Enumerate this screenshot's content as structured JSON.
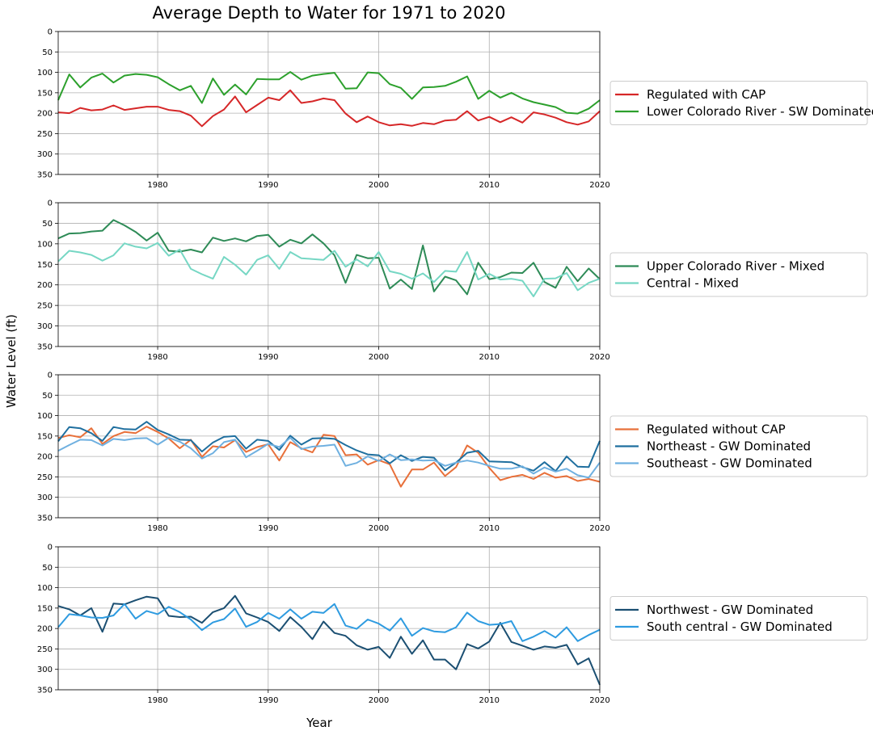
{
  "figure": {
    "title": "Average Depth to Water for 1971 to 2020",
    "ylabel": "Water Level (ft)",
    "xlabel": "Year"
  },
  "chart_data": [
    {
      "type": "line",
      "xlim": [
        1971,
        2020
      ],
      "ylim": [
        0,
        350
      ],
      "y_inverted": true,
      "x_ticks": [
        1980,
        1990,
        2000,
        2010,
        2020
      ],
      "y_ticks": [
        0,
        50,
        100,
        150,
        200,
        250,
        300,
        350
      ],
      "grid": true,
      "legend_position": "right",
      "x": [
        1971,
        1972,
        1973,
        1974,
        1975,
        1976,
        1977,
        1978,
        1979,
        1980,
        1981,
        1982,
        1983,
        1984,
        1985,
        1986,
        1987,
        1988,
        1989,
        1990,
        1991,
        1992,
        1993,
        1994,
        1995,
        1996,
        1997,
        1998,
        1999,
        2000,
        2001,
        2002,
        2003,
        2004,
        2005,
        2006,
        2007,
        2008,
        2009,
        2010,
        2011,
        2012,
        2013,
        2014,
        2015,
        2016,
        2017,
        2018,
        2019,
        2020
      ],
      "series": [
        {
          "name": "Regulated with CAP",
          "color": "#d62728",
          "values": [
            198,
            200,
            187,
            193,
            191,
            181,
            192,
            188,
            184,
            184,
            192,
            195,
            206,
            232,
            207,
            191,
            159,
            198,
            180,
            162,
            168,
            144,
            175,
            171,
            164,
            168,
            201,
            222,
            208,
            222,
            230,
            227,
            231,
            224,
            227,
            218,
            216,
            195,
            218,
            209,
            222,
            210,
            223,
            198,
            203,
            211,
            222,
            228,
            220,
            195
          ]
        },
        {
          "name": "Lower Colorado River - SW Dominated",
          "color": "#2ca02c",
          "values": [
            168,
            105,
            137,
            113,
            103,
            125,
            108,
            104,
            106,
            112,
            129,
            144,
            133,
            175,
            115,
            155,
            130,
            154,
            116,
            117,
            117,
            99,
            118,
            108,
            104,
            101,
            140,
            139,
            100,
            102,
            129,
            138,
            165,
            137,
            136,
            133,
            123,
            110,
            165,
            145,
            162,
            150,
            164,
            173,
            179,
            185,
            199,
            201,
            189,
            168
          ]
        }
      ]
    },
    {
      "type": "line",
      "xlim": [
        1971,
        2020
      ],
      "ylim": [
        0,
        350
      ],
      "y_inverted": true,
      "x_ticks": [
        1980,
        1990,
        2000,
        2010,
        2020
      ],
      "y_ticks": [
        0,
        50,
        100,
        150,
        200,
        250,
        300,
        350
      ],
      "grid": true,
      "legend_position": "right",
      "x": [
        1971,
        1972,
        1973,
        1974,
        1975,
        1976,
        1977,
        1978,
        1979,
        1980,
        1981,
        1982,
        1983,
        1984,
        1985,
        1986,
        1987,
        1988,
        1989,
        1990,
        1991,
        1992,
        1993,
        1994,
        1995,
        1996,
        1997,
        1998,
        1999,
        2000,
        2001,
        2002,
        2003,
        2004,
        2005,
        2006,
        2007,
        2008,
        2009,
        2010,
        2011,
        2012,
        2013,
        2014,
        2015,
        2016,
        2017,
        2018,
        2019,
        2020
      ],
      "series": [
        {
          "name": "Upper Colorado River - Mixed",
          "color": "#2e8b57",
          "values": [
            87,
            75,
            74,
            70,
            68,
            42,
            55,
            71,
            92,
            73,
            117,
            119,
            114,
            121,
            85,
            93,
            87,
            94,
            81,
            78,
            107,
            90,
            99,
            77,
            99,
            128,
            195,
            127,
            135,
            134,
            209,
            187,
            210,
            104,
            216,
            180,
            189,
            223,
            146,
            186,
            181,
            170,
            171,
            146,
            193,
            207,
            156,
            191,
            160,
            186
          ]
        },
        {
          "name": "Central - Mixed",
          "color": "#76d7c4",
          "values": [
            143,
            117,
            121,
            127,
            141,
            128,
            99,
            107,
            111,
            98,
            129,
            114,
            161,
            174,
            185,
            132,
            151,
            175,
            139,
            128,
            161,
            120,
            135,
            137,
            139,
            117,
            156,
            138,
            155,
            120,
            167,
            173,
            185,
            172,
            193,
            166,
            168,
            120,
            187,
            173,
            187,
            185,
            190,
            228,
            185,
            184,
            171,
            213,
            195,
            185
          ]
        }
      ]
    },
    {
      "type": "line",
      "xlim": [
        1971,
        2020
      ],
      "ylim": [
        0,
        350
      ],
      "y_inverted": true,
      "x_ticks": [
        1980,
        1990,
        2000,
        2010,
        2020
      ],
      "y_ticks": [
        0,
        50,
        100,
        150,
        200,
        250,
        300,
        350
      ],
      "grid": true,
      "legend_position": "right",
      "x": [
        1971,
        1972,
        1973,
        1974,
        1975,
        1976,
        1977,
        1978,
        1979,
        1980,
        1981,
        1982,
        1983,
        1984,
        1985,
        1986,
        1987,
        1988,
        1989,
        1990,
        1991,
        1992,
        1993,
        1994,
        1995,
        1996,
        1997,
        1998,
        1999,
        2000,
        2001,
        2002,
        2003,
        2004,
        2005,
        2006,
        2007,
        2008,
        2009,
        2010,
        2011,
        2012,
        2013,
        2014,
        2015,
        2016,
        2017,
        2018,
        2019,
        2020
      ],
      "series": [
        {
          "name": "Regulated without CAP",
          "color": "#e8703a",
          "values": [
            155,
            148,
            153,
            131,
            169,
            150,
            140,
            143,
            127,
            140,
            156,
            180,
            159,
            201,
            175,
            178,
            160,
            189,
            177,
            170,
            210,
            165,
            180,
            190,
            147,
            150,
            197,
            195,
            220,
            209,
            219,
            274,
            232,
            232,
            215,
            248,
            226,
            173,
            191,
            228,
            258,
            250,
            245,
            255,
            240,
            252,
            248,
            260,
            255,
            262
          ]
        },
        {
          "name": "Northeast - GW Dominated",
          "color": "#1f6f9f",
          "values": [
            163,
            128,
            131,
            143,
            162,
            128,
            133,
            134,
            115,
            135,
            146,
            159,
            160,
            188,
            166,
            152,
            150,
            181,
            159,
            162,
            184,
            149,
            171,
            156,
            155,
            157,
            172,
            185,
            195,
            197,
            217,
            197,
            211,
            201,
            203,
            234,
            215,
            191,
            186,
            212,
            213,
            214,
            226,
            235,
            214,
            236,
            200,
            225,
            226,
            162
          ]
        },
        {
          "name": "Southeast - GW Dominated",
          "color": "#6fb0e0",
          "values": [
            186,
            172,
            159,
            160,
            173,
            157,
            160,
            156,
            155,
            171,
            154,
            164,
            180,
            205,
            192,
            165,
            159,
            202,
            186,
            169,
            177,
            154,
            182,
            176,
            174,
            171,
            223,
            216,
            200,
            211,
            195,
            209,
            207,
            210,
            209,
            223,
            215,
            210,
            215,
            223,
            230,
            230,
            224,
            242,
            227,
            237,
            230,
            246,
            252,
            215
          ]
        }
      ]
    },
    {
      "type": "line",
      "xlim": [
        1971,
        2020
      ],
      "ylim": [
        0,
        350
      ],
      "y_inverted": true,
      "x_ticks": [
        1980,
        1990,
        2000,
        2010,
        2020
      ],
      "y_ticks": [
        0,
        50,
        100,
        150,
        200,
        250,
        300,
        350
      ],
      "grid": true,
      "legend_position": "right",
      "x": [
        1971,
        1972,
        1973,
        1974,
        1975,
        1976,
        1977,
        1978,
        1979,
        1980,
        1981,
        1982,
        1983,
        1984,
        1985,
        1986,
        1987,
        1988,
        1989,
        1990,
        1991,
        1992,
        1993,
        1994,
        1995,
        1996,
        1997,
        1998,
        1999,
        2000,
        2001,
        2002,
        2003,
        2004,
        2005,
        2006,
        2007,
        2008,
        2009,
        2010,
        2011,
        2012,
        2013,
        2014,
        2015,
        2016,
        2017,
        2018,
        2019,
        2020
      ],
      "series": [
        {
          "name": "Northwest - GW Dominated",
          "color": "#1b4f72",
          "values": [
            145,
            153,
            168,
            150,
            208,
            139,
            141,
            131,
            122,
            126,
            169,
            172,
            171,
            186,
            160,
            150,
            120,
            163,
            173,
            184,
            206,
            172,
            196,
            226,
            183,
            211,
            218,
            241,
            252,
            245,
            272,
            220,
            262,
            229,
            276,
            276,
            300,
            238,
            249,
            232,
            186,
            233,
            242,
            252,
            244,
            247,
            240,
            288,
            273,
            338
          ]
        },
        {
          "name": "South central - GW Dominated",
          "color": "#2e9be0",
          "values": [
            197,
            165,
            168,
            173,
            174,
            168,
            140,
            176,
            157,
            165,
            147,
            160,
            178,
            204,
            185,
            177,
            151,
            196,
            184,
            162,
            176,
            153,
            176,
            159,
            162,
            140,
            193,
            201,
            178,
            188,
            205,
            175,
            218,
            199,
            207,
            209,
            197,
            161,
            182,
            191,
            189,
            182,
            231,
            220,
            206,
            222,
            197,
            231,
            216,
            203
          ]
        }
      ]
    }
  ]
}
